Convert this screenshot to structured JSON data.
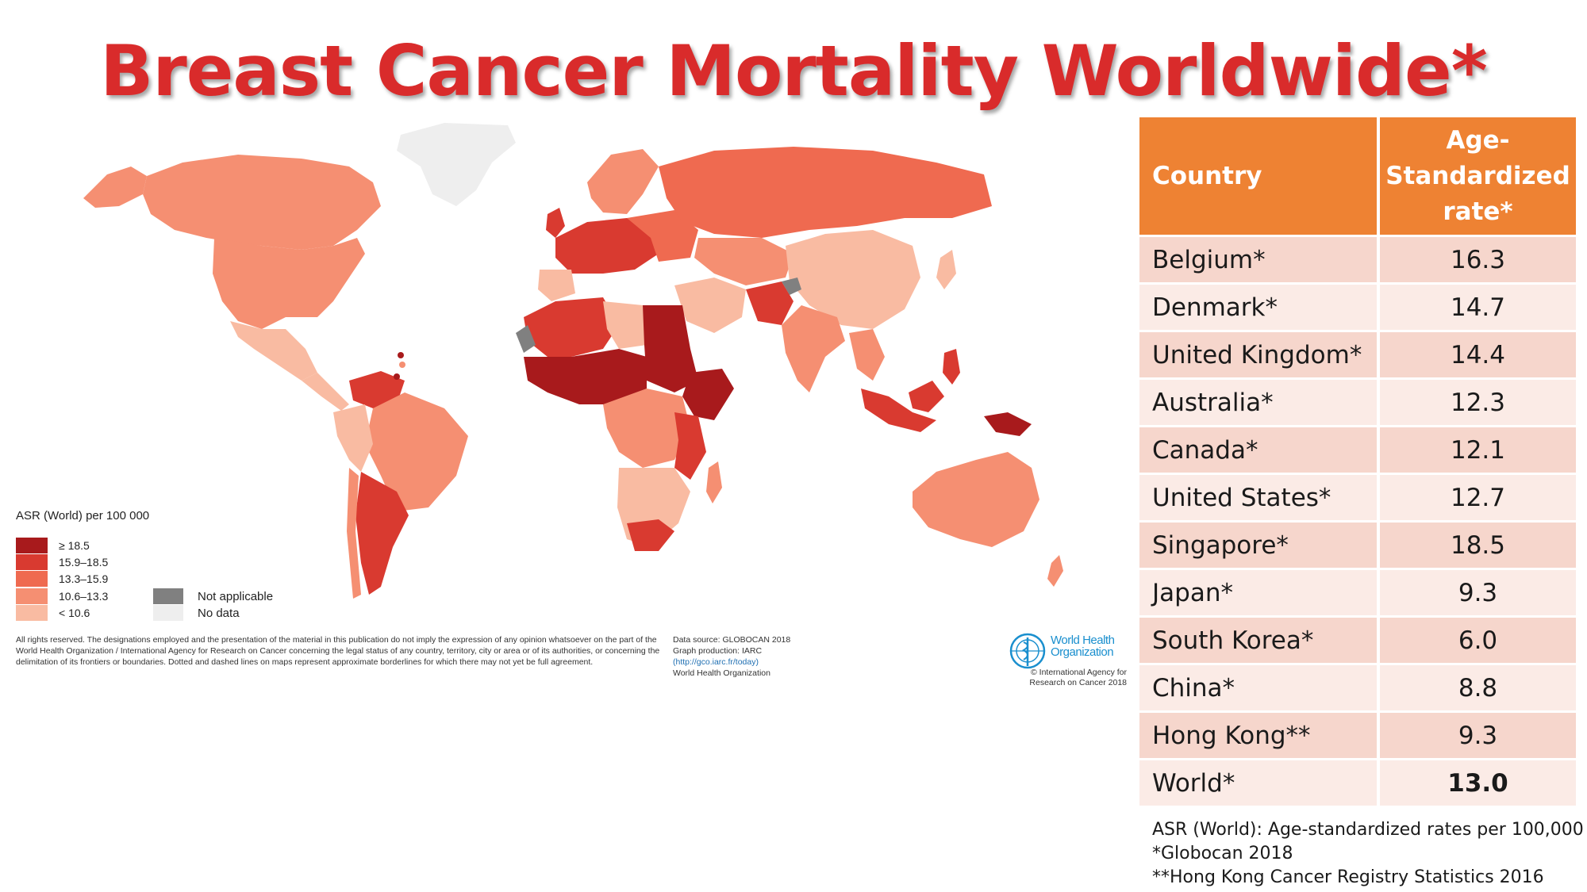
{
  "title": "Breast Cancer Mortality Worldwide*",
  "colors": {
    "title": "#d92b2b",
    "header": "#ee8233",
    "row_odd": "#f6d6cc",
    "row_even": "#fbebe6",
    "class_1": "#a81a1c",
    "class_2": "#d93a30",
    "class_3": "#ef6a50",
    "class_4": "#f58f72",
    "class_5": "#f9bba2",
    "not_applicable": "#808080",
    "no_data": "#eeeeee"
  },
  "legend": {
    "title": "ASR (World) per 100 000",
    "classes": [
      "≥ 18.5",
      "15.9–18.5",
      "13.3–15.9",
      "10.6–13.3",
      "< 10.6"
    ],
    "not_applicable": "Not applicable",
    "no_data": "No data"
  },
  "disclaimer": "All rights reserved. The designations employed and the presentation of the material in this publication do not imply the expression of any opinion whatsoever on the part of the World Health Organization / International Agency for Research on Cancer concerning the legal status of any country, territory, city or area or of its authorities, or concerning the delimitation of its frontiers or boundaries. Dotted and dashed lines on maps represent approximate borderlines for which there may not yet be full agreement.",
  "source": {
    "line1": "Data source: GLOBOCAN 2018",
    "line2": "Graph production: IARC",
    "link": "(http://gco.iarc.fr/today)",
    "line4": "World Health Organization"
  },
  "who": {
    "name_line1": "World Health",
    "name_line2": "Organization",
    "copyright_line1": "© International Agency for",
    "copyright_line2": "Research on Cancer 2018"
  },
  "table": {
    "header_country": "Country",
    "header_rate": "Age-Standardized rate*",
    "rows": [
      {
        "country": "Belgium*",
        "rate": "16.3"
      },
      {
        "country": "Denmark*",
        "rate": "14.7"
      },
      {
        "country": "United Kingdom*",
        "rate": "14.4"
      },
      {
        "country": "Australia*",
        "rate": "12.3"
      },
      {
        "country": "Canada*",
        "rate": "12.1"
      },
      {
        "country": "United States*",
        "rate": "12.7"
      },
      {
        "country": "Singapore*",
        "rate": "18.5"
      },
      {
        "country": "Japan*",
        "rate": "9.3"
      },
      {
        "country": "South Korea*",
        "rate": "6.0"
      },
      {
        "country": "China*",
        "rate": "8.8"
      },
      {
        "country": "Hong Kong**",
        "rate": "9.3"
      },
      {
        "country": "World*",
        "rate": "13.0"
      }
    ]
  },
  "notes": {
    "line1": "ASR (World): Age-standardized rates per 100,000",
    "line2": "*Globocan 2018",
    "line3": "**Hong Kong Cancer Registry Statistics 2016"
  }
}
